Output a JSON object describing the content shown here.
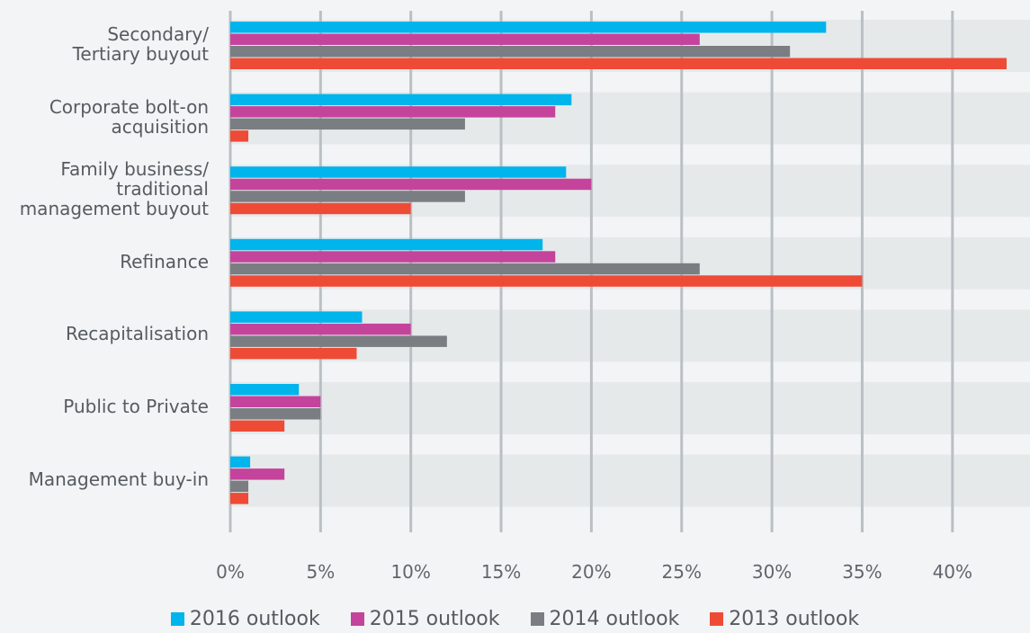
{
  "chart_data": {
    "type": "hbar",
    "categories": [
      "Secondary/\nTertiary buyout",
      "Corporate bolt-on\nacquisition",
      "Family business/\ntraditional\nmanagement buyout",
      "Refinance",
      "Recapitalisation",
      "Public to Private",
      "Management buy-in"
    ],
    "series": [
      {
        "name": "2016 outlook",
        "color": "#00b4ec",
        "values": [
          33,
          18.9,
          18.6,
          17.3,
          7.3,
          3.8,
          1.1
        ]
      },
      {
        "name": "2015 outlook",
        "color": "#c4449c",
        "values": [
          26,
          18,
          20,
          18,
          10,
          5,
          3
        ]
      },
      {
        "name": "2014 outlook",
        "color": "#7a7d82",
        "values": [
          31,
          13,
          13,
          26,
          12,
          5,
          1
        ]
      },
      {
        "name": "2013 outlook",
        "color": "#ee4b37",
        "values": [
          43,
          1,
          10,
          35,
          7,
          3,
          1
        ]
      }
    ],
    "xlim": [
      0,
      44.2
    ],
    "xticks": [
      {
        "value": 0,
        "label": "0%"
      },
      {
        "value": 5,
        "label": "5%"
      },
      {
        "value": 10,
        "label": "10%"
      },
      {
        "value": 15,
        "label": "15%"
      },
      {
        "value": 20,
        "label": "20%"
      },
      {
        "value": 25,
        "label": "25%"
      },
      {
        "value": 30,
        "label": "30%"
      },
      {
        "value": 35,
        "label": "35%"
      },
      {
        "value": 40,
        "label": "40%"
      }
    ],
    "grid": true,
    "legend": "bottom"
  }
}
